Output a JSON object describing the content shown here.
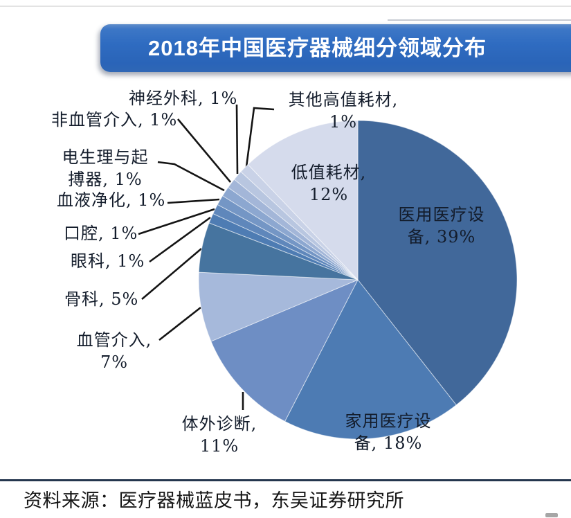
{
  "header": {
    "title": "2018年中国医疗器械细分领域分布"
  },
  "footer": {
    "source": "资料来源：医疗器械蓝皮书，东吴证券研究所"
  },
  "labels": {
    "yiyong": "医用医疗设\n备, 39%",
    "jiayong": "家用医疗设\n备, 18%",
    "tiwaizhenduan": "体外诊断,\n11%",
    "xueguanjieru": "血管介入,\n7%",
    "guke": "骨科, 5%",
    "yanke": "眼科, 1%",
    "kouqiang": "口腔, 1%",
    "xueyejinghua": "血液净化, 1%",
    "dianshengli": "电生理与起\n搏器, 1%",
    "feixueguanjieru": "非血管介入, 1%",
    "shenjingwaike": "神经外科, 1%",
    "qitagaozhi": "其他高值耗材,\n1%",
    "dizhihaocai": "低值耗材,\n12%"
  },
  "colors": {
    "banner_blue": "#2f6cc1",
    "divider": "#24364e",
    "leader_line": "#141414",
    "label_text": "#131c2b"
  },
  "chart_data": {
    "type": "pie",
    "title": "2018年中国医疗器械细分领域分布",
    "unit": "percent",
    "start_angle_deg": 0,
    "direction": "clockwise",
    "legend_position": "none",
    "segments": [
      {
        "id": "yiyong",
        "label": "医用医疗设备",
        "value": 39,
        "color": "#41689a"
      },
      {
        "id": "jiayong",
        "label": "家用医疗设备",
        "value": 18,
        "color": "#4d7bb3"
      },
      {
        "id": "tiwaizhenduan",
        "label": "体外诊断",
        "value": 11,
        "color": "#6e8ec4"
      },
      {
        "id": "xueguanjieru",
        "label": "血管介入",
        "value": 7,
        "color": "#a6b9db"
      },
      {
        "id": "guke",
        "label": "骨科",
        "value": 5,
        "color": "#46749f"
      },
      {
        "id": "yanke",
        "label": "眼科",
        "value": 1,
        "color": "#4e7cb3"
      },
      {
        "id": "kouqiang",
        "label": "口腔",
        "value": 1,
        "color": "#5f87bb"
      },
      {
        "id": "xueyejinghua",
        "label": "血液净化",
        "value": 1,
        "color": "#7496c5"
      },
      {
        "id": "dianshengli",
        "label": "电生理与起搏器",
        "value": 1,
        "color": "#8ca7d0"
      },
      {
        "id": "feixueguanjieru",
        "label": "非血管介入",
        "value": 1,
        "color": "#a3b6d8"
      },
      {
        "id": "shenjingwaike",
        "label": "神经外科",
        "value": 1,
        "color": "#b8c6e0"
      },
      {
        "id": "qitagaozhi",
        "label": "其他高值耗材",
        "value": 1,
        "color": "#c9d2e7"
      },
      {
        "id": "dizhihaocai",
        "label": "低值耗材",
        "value": 12,
        "color": "#d5dbec"
      }
    ]
  }
}
